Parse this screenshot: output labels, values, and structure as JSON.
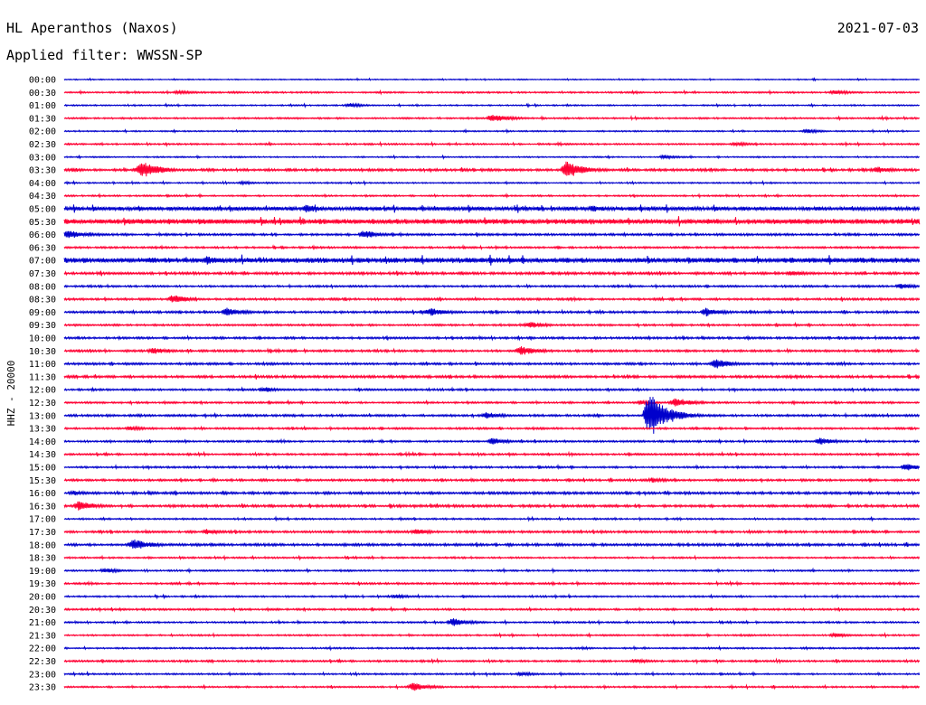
{
  "header": {
    "station": "HL Aperanthos (Naxos)",
    "date": "2021-07-03",
    "filter": "Applied filter: WWSSN-SP"
  },
  "chart_data": {
    "type": "line",
    "title": "HL Aperanthos (Naxos)",
    "subtitle": "Applied filter: WWSSN-SP",
    "date": "2021-07-03",
    "ylabel": "HHZ - 20000",
    "rows": [
      "00:00",
      "00:30",
      "01:00",
      "01:30",
      "02:00",
      "02:30",
      "03:00",
      "03:30",
      "04:00",
      "04:30",
      "05:00",
      "05:30",
      "06:00",
      "06:30",
      "07:00",
      "07:30",
      "08:00",
      "08:30",
      "09:00",
      "09:30",
      "10:00",
      "10:30",
      "11:00",
      "11:30",
      "12:00",
      "12:30",
      "13:00",
      "13:30",
      "14:00",
      "14:30",
      "15:00",
      "15:30",
      "16:00",
      "16:30",
      "17:00",
      "17:30",
      "18:00",
      "18:30",
      "19:00",
      "19:30",
      "20:00",
      "20:30",
      "21:00",
      "21:30",
      "22:00",
      "22:30",
      "23:00",
      "23:30"
    ],
    "row_colors": [
      "#0000cc",
      "#ff0033"
    ],
    "row_duration_minutes": 30,
    "noise": [
      0.4,
      0.6,
      0.5,
      0.6,
      0.5,
      0.6,
      0.5,
      0.9,
      0.5,
      0.6,
      1.5,
      2.0,
      0.8,
      0.7,
      2.0,
      0.9,
      0.7,
      0.8,
      0.8,
      0.7,
      0.8,
      0.8,
      0.8,
      0.9,
      0.7,
      0.7,
      0.8,
      0.7,
      0.7,
      0.7,
      0.7,
      0.8,
      0.9,
      0.9,
      0.6,
      0.8,
      0.9,
      0.6,
      0.6,
      0.7,
      0.6,
      0.7,
      0.6,
      0.6,
      0.6,
      0.7,
      0.6,
      0.6
    ],
    "events": [
      {
        "row": 1,
        "minute": 4,
        "amp": 2.5
      },
      {
        "row": 1,
        "minute": 27,
        "amp": 3.0
      },
      {
        "row": 2,
        "minute": 10,
        "amp": 2.5
      },
      {
        "row": 3,
        "minute": 15,
        "amp": 5.0
      },
      {
        "row": 4,
        "minute": 26,
        "amp": 2.5
      },
      {
        "row": 5,
        "minute": 23.5,
        "amp": 2.5
      },
      {
        "row": 6,
        "minute": 21,
        "amp": 2.5
      },
      {
        "row": 7,
        "minute": 2.7,
        "amp": 11.0
      },
      {
        "row": 7,
        "minute": 17.6,
        "amp": 10.0
      },
      {
        "row": 7,
        "minute": 28.5,
        "amp": 4.0
      },
      {
        "row": 8,
        "minute": 6.2,
        "amp": 2.0
      },
      {
        "row": 10,
        "minute": 8.5,
        "amp": 5.0
      },
      {
        "row": 10,
        "minute": 18.5,
        "amp": 4.0
      },
      {
        "row": 12,
        "minute": 0.1,
        "amp": 6.0
      },
      {
        "row": 12,
        "minute": 10.5,
        "amp": 5.0
      },
      {
        "row": 14,
        "minute": 5.0,
        "amp": 5.0
      },
      {
        "row": 15,
        "minute": 25.5,
        "amp": 3.5
      },
      {
        "row": 16,
        "minute": 29.3,
        "amp": 3.5
      },
      {
        "row": 17,
        "minute": 3.8,
        "amp": 5.0
      },
      {
        "row": 18,
        "minute": 5.7,
        "amp": 5.0
      },
      {
        "row": 18,
        "minute": 12.8,
        "amp": 5.0
      },
      {
        "row": 18,
        "minute": 22.5,
        "amp": 5.0
      },
      {
        "row": 19,
        "minute": 16.3,
        "amp": 4.0
      },
      {
        "row": 21,
        "minute": 3.1,
        "amp": 4.0
      },
      {
        "row": 21,
        "minute": 16.0,
        "amp": 6.0
      },
      {
        "row": 22,
        "minute": 22.8,
        "amp": 6.0
      },
      {
        "row": 24,
        "minute": 7.0,
        "amp": 3.0
      },
      {
        "row": 25,
        "minute": 20.2,
        "amp": 2.5
      },
      {
        "row": 25,
        "minute": 21.4,
        "amp": 6.0
      },
      {
        "row": 26,
        "minute": 20.5,
        "amp": 26.0
      },
      {
        "row": 26,
        "minute": 14.8,
        "amp": 4.0
      },
      {
        "row": 27,
        "minute": 2.3,
        "amp": 3.0
      },
      {
        "row": 28,
        "minute": 15.0,
        "amp": 4.0
      },
      {
        "row": 28,
        "minute": 26.5,
        "amp": 4.0
      },
      {
        "row": 30,
        "minute": 29.5,
        "amp": 4.0
      },
      {
        "row": 31,
        "minute": 20.6,
        "amp": 3.0
      },
      {
        "row": 32,
        "minute": 0.3,
        "amp": 3.0
      },
      {
        "row": 33,
        "minute": 0.5,
        "amp": 6.0
      },
      {
        "row": 35,
        "minute": 5.0,
        "amp": 3.5
      },
      {
        "row": 35,
        "minute": 12.3,
        "amp": 4.0
      },
      {
        "row": 36,
        "minute": 2.4,
        "amp": 7.0
      },
      {
        "row": 38,
        "minute": 1.4,
        "amp": 3.0
      },
      {
        "row": 40,
        "minute": 11.6,
        "amp": 2.5
      },
      {
        "row": 42,
        "minute": 13.6,
        "amp": 5.0
      },
      {
        "row": 43,
        "minute": 27.0,
        "amp": 3.0
      },
      {
        "row": 45,
        "minute": 20.0,
        "amp": 2.5
      },
      {
        "row": 46,
        "minute": 16.0,
        "amp": 2.5
      },
      {
        "row": 47,
        "minute": 12.2,
        "amp": 5.0
      }
    ]
  }
}
